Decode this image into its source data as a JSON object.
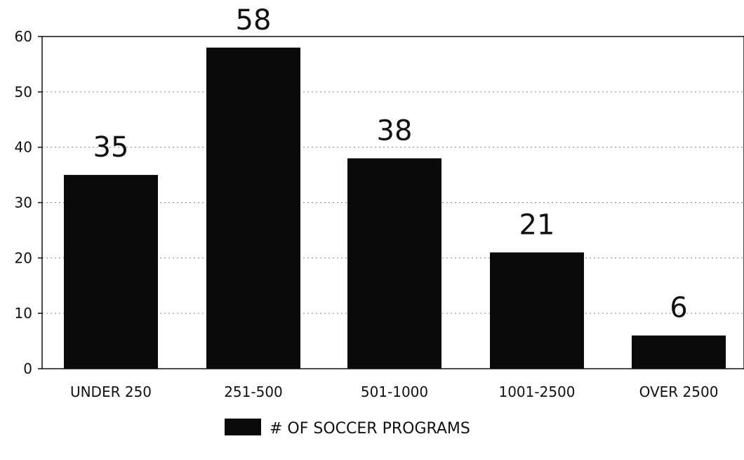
{
  "chart_data": {
    "type": "bar",
    "categories": [
      "UNDER 250",
      "251-500",
      "501-1000",
      "1001-2500",
      "OVER 2500"
    ],
    "series": [
      {
        "name": "# OF SOCCER PROGRAMS",
        "values": [
          35,
          58,
          38,
          21,
          6
        ]
      }
    ],
    "data_labels": [
      "35",
      "58",
      "38",
      "21",
      "6"
    ],
    "yticks": [
      "0",
      "10",
      "20",
      "30",
      "40",
      "50",
      "60"
    ],
    "ylim": [
      0,
      60
    ],
    "grid": true,
    "legend_position": "bottom",
    "bar_color": "#0a0a0a",
    "title": "",
    "xlabel": "",
    "ylabel": ""
  }
}
